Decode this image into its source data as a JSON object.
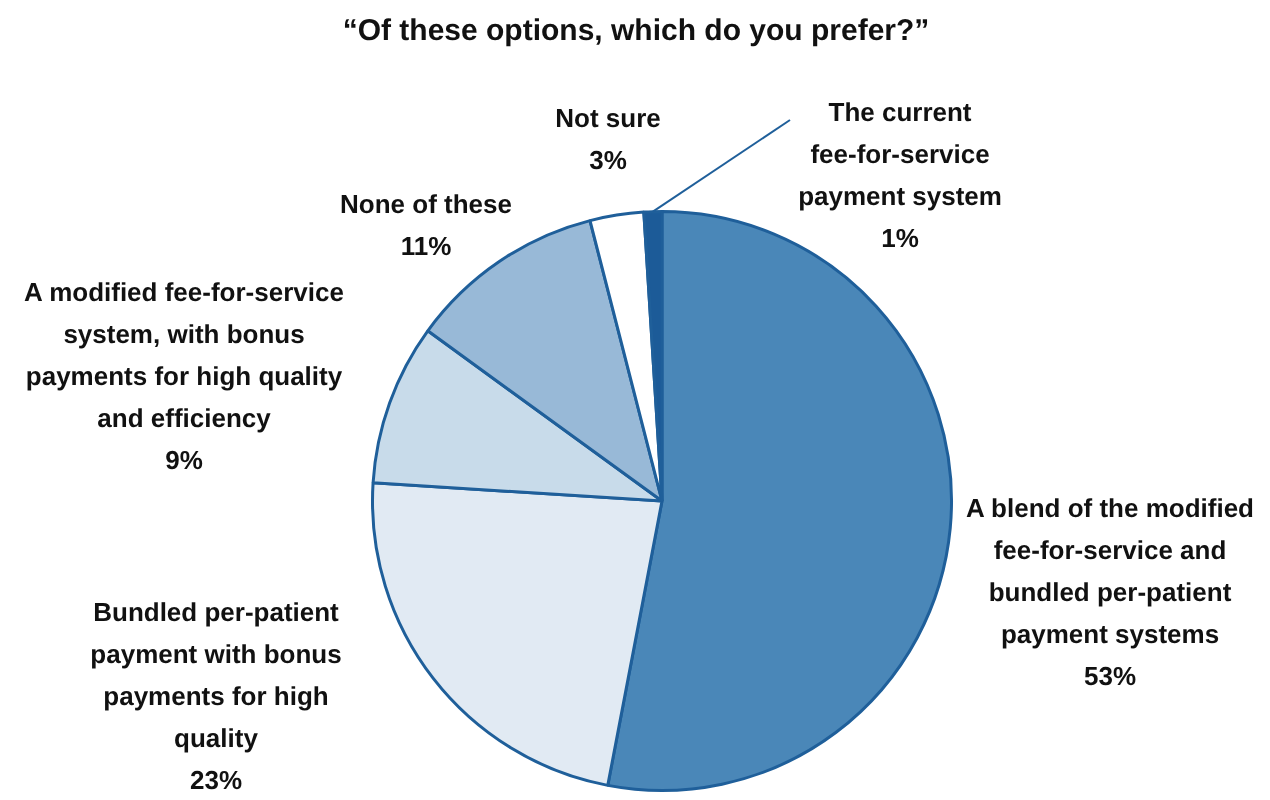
{
  "chart_data": {
    "type": "pie",
    "title": "“Of these options, which do you prefer?”",
    "categories": [
      "A blend of the modified fee-for-service and bundled per-patient payment systems",
      "Bundled per-patient payment with bonus payments for high quality",
      "A modified fee-for-service system, with bonus payments for high quality and efficiency",
      "None of these",
      "Not sure",
      "The current fee-for-service payment system"
    ],
    "values": [
      53,
      23,
      9,
      11,
      3,
      1
    ],
    "value_labels": [
      "53%",
      "23%",
      "9%",
      "11%",
      "3%",
      "1%"
    ],
    "colors": [
      "#4a87b8",
      "#e1eaf3",
      "#c8dbea",
      "#98b9d7",
      "#ffffff",
      "#1c5b98"
    ],
    "legend": false
  }
}
